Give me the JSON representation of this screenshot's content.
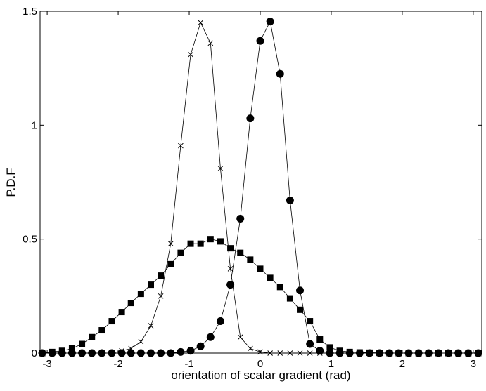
{
  "chart_data": {
    "type": "line",
    "x_label": "orientation of scalar gradient (rad)",
    "y_label": "P.D.F",
    "x": [
      -3.07,
      -2.93,
      -2.79,
      -2.65,
      -2.51,
      -2.37,
      -2.23,
      -2.09,
      -1.95,
      -1.82,
      -1.68,
      -1.54,
      -1.4,
      -1.26,
      -1.12,
      -0.98,
      -0.84,
      -0.7,
      -0.56,
      -0.42,
      -0.28,
      -0.14,
      0,
      0.14,
      0.28,
      0.42,
      0.56,
      0.7,
      0.84,
      0.98,
      1.12,
      1.26,
      1.4,
      1.54,
      1.68,
      1.82,
      1.95,
      2.09,
      2.23,
      2.37,
      2.51,
      2.65,
      2.79,
      2.93,
      3.07
    ],
    "series": [
      {
        "marker": "square",
        "color": "#000000",
        "values": [
          0,
          0.005,
          0.01,
          0.02,
          0.04,
          0.07,
          0.1,
          0.14,
          0.18,
          0.22,
          0.26,
          0.3,
          0.34,
          0.39,
          0.44,
          0.48,
          0.48,
          0.5,
          0.49,
          0.46,
          0.44,
          0.41,
          0.37,
          0.33,
          0.29,
          0.24,
          0.19,
          0.14,
          0.06,
          0.025,
          0.01,
          0.005,
          0.003,
          0.002,
          0.001,
          0,
          0,
          0,
          0,
          0,
          0,
          0,
          0,
          0,
          0
        ]
      },
      {
        "marker": "cross",
        "color": "#000000",
        "values": [
          0,
          0,
          0,
          0,
          0,
          0,
          0,
          0,
          0.01,
          0.02,
          0.05,
          0.12,
          0.25,
          0.48,
          0.91,
          1.31,
          1.45,
          1.36,
          0.81,
          0.37,
          0.07,
          0.02,
          0.005,
          0,
          0,
          0,
          0,
          0,
          0,
          0,
          0,
          0,
          0,
          0,
          0,
          0,
          0,
          0,
          0,
          0,
          0,
          0,
          0,
          0,
          0
        ]
      },
      {
        "marker": "circle",
        "color": "#000000",
        "values": [
          0,
          0,
          0,
          0,
          0,
          0,
          0,
          0,
          0,
          0,
          0,
          0,
          0,
          0,
          0.005,
          0.01,
          0.03,
          0.07,
          0.14,
          0.3,
          0.59,
          1.03,
          1.37,
          1.455,
          1.225,
          0.67,
          0.275,
          0.04,
          0.01,
          0,
          0,
          0,
          0,
          0,
          0,
          0,
          0,
          0,
          0,
          0,
          0,
          0,
          0,
          0,
          0
        ]
      }
    ],
    "xlim": [
      -3.1,
      3.12
    ],
    "ylim": [
      0,
      1.5
    ],
    "xticks": [
      -3,
      -2,
      -1,
      0,
      1,
      2,
      3
    ],
    "yticks": [
      0,
      0.5,
      1,
      1.5
    ]
  }
}
